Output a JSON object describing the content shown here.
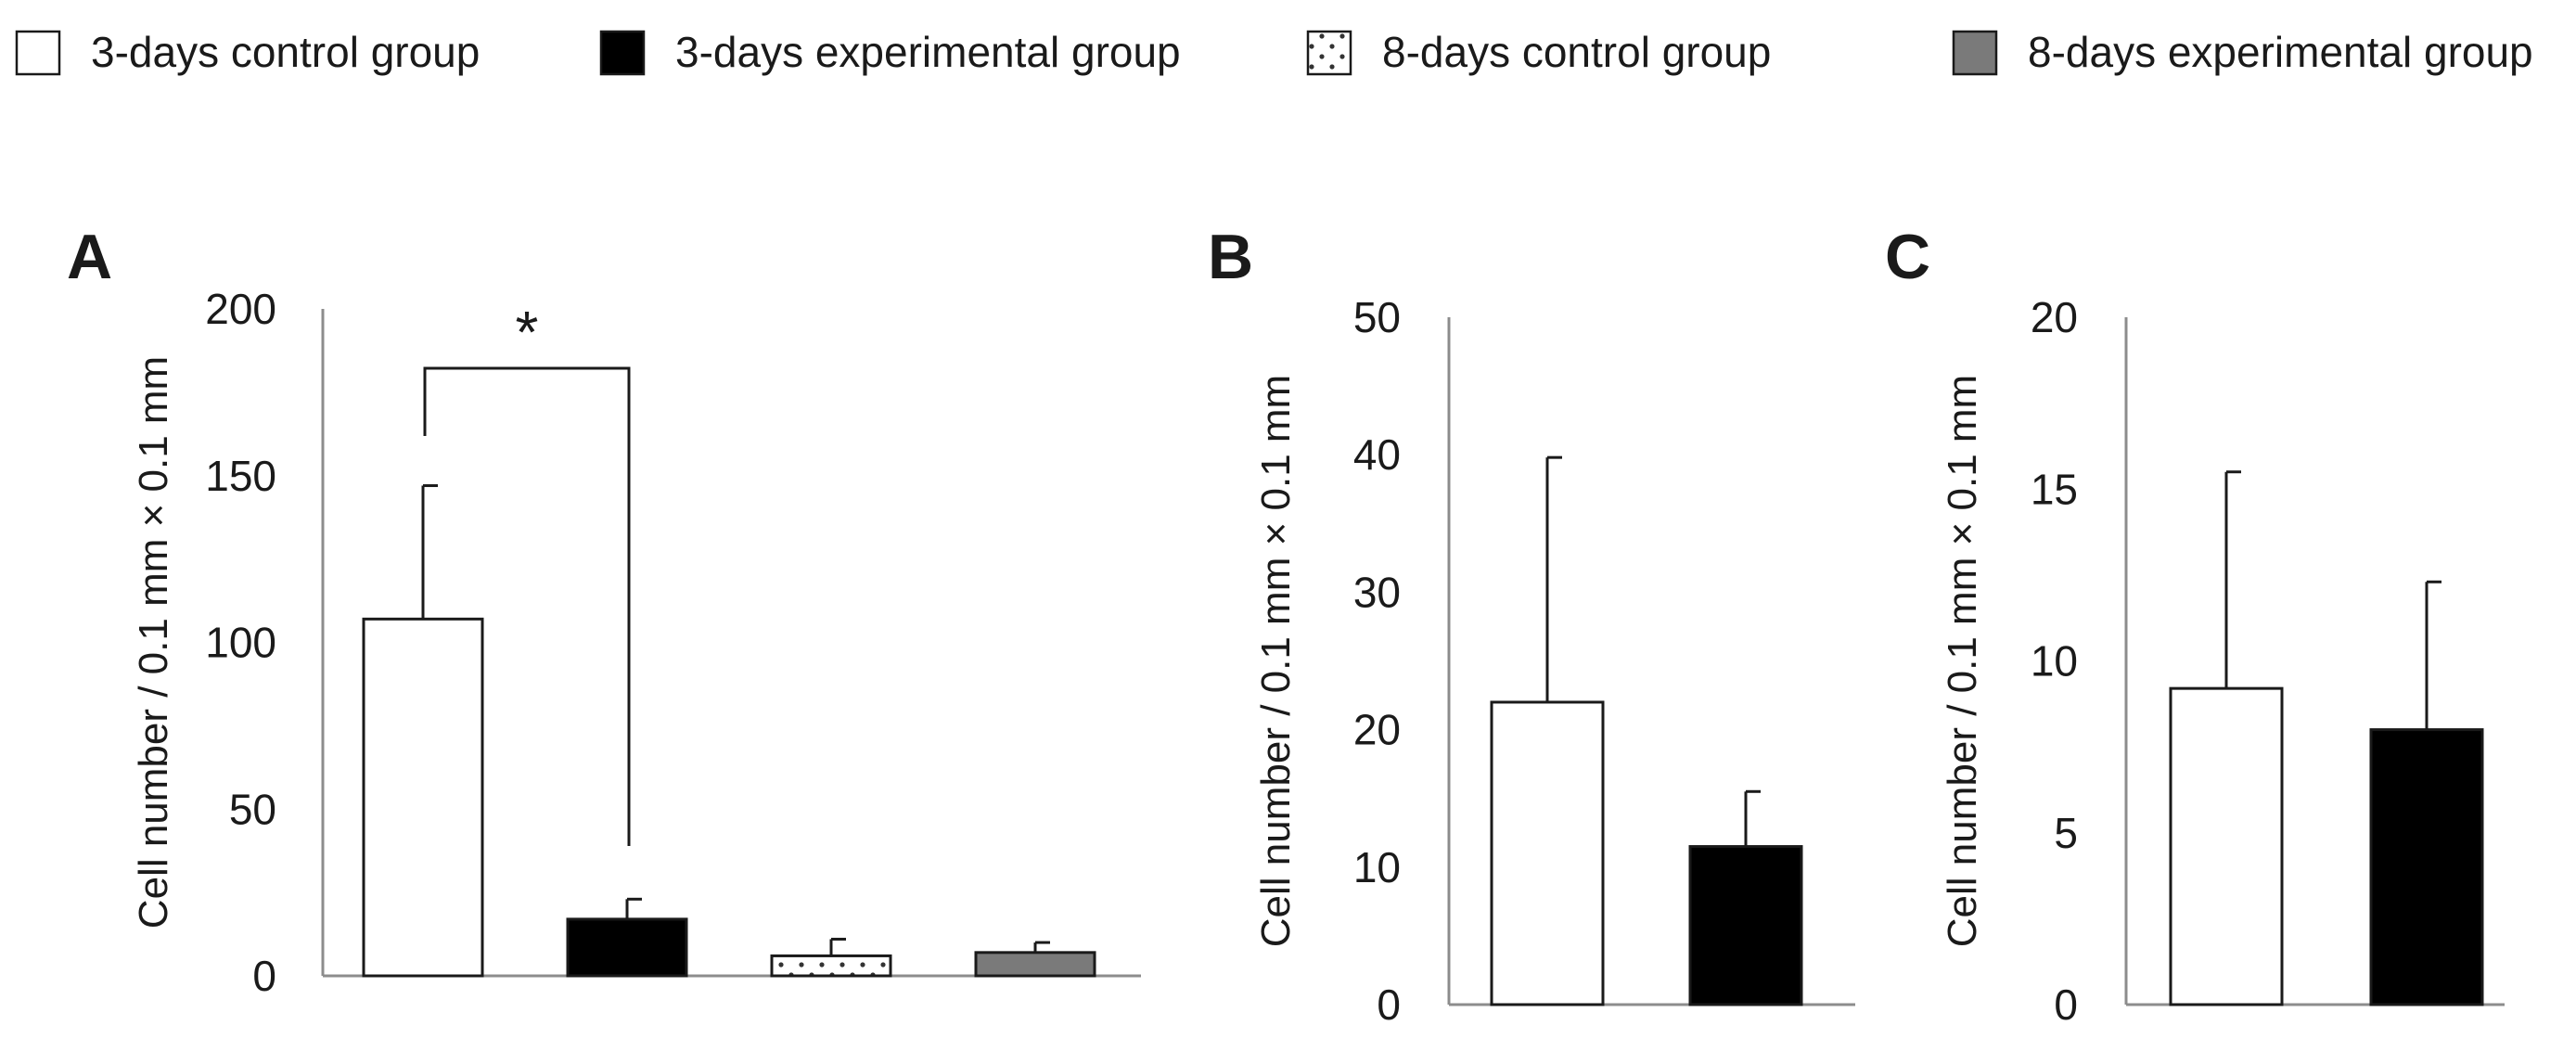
{
  "legend": [
    {
      "label": "3-days control group",
      "pattern": "white"
    },
    {
      "label": "3-days experimental group",
      "pattern": "black"
    },
    {
      "label": "8-days control group",
      "pattern": "dotted"
    },
    {
      "label": "8-days experimental group",
      "pattern": "gray"
    }
  ],
  "colors": {
    "white": "#ffffff",
    "black": "#000000",
    "gray": "#7a7a7a",
    "dots": "#333333",
    "axis": "#8c8c8c",
    "stroke": "#1a1a1a"
  },
  "chart_data": [
    {
      "panel": "A",
      "type": "bar",
      "title": "",
      "xlabel": "",
      "ylabel": "Cell number / 0.1 mm × 0.1 mm",
      "ylim": [
        0,
        200
      ],
      "yticks": [
        "0",
        "50",
        "100",
        "150",
        "200"
      ],
      "categories": [
        "3-days control group",
        "3-days experimental group",
        "8-days control group",
        "8-days experimental group"
      ],
      "values": [
        107,
        17,
        6,
        7
      ],
      "errors": [
        40,
        6,
        5,
        3
      ],
      "significance": {
        "pair": [
          0,
          1
        ],
        "label": "*"
      }
    },
    {
      "panel": "B",
      "type": "bar",
      "title": "",
      "xlabel": "",
      "ylabel": "Cell number / 0.1 mm × 0.1 mm",
      "ylim": [
        0,
        50
      ],
      "yticks": [
        "0",
        "10",
        "20",
        "30",
        "40",
        "50"
      ],
      "categories": [
        "3-days control group",
        "3-days experimental group"
      ],
      "values": [
        22,
        11.5
      ],
      "errors": [
        17.8,
        4
      ]
    },
    {
      "panel": "C",
      "type": "bar",
      "title": "",
      "xlabel": "",
      "ylabel": "Cell number / 0.1 mm × 0.1 mm",
      "ylim": [
        0,
        20
      ],
      "yticks": [
        "0",
        "5",
        "10",
        "15",
        "20"
      ],
      "categories": [
        "3-days control group",
        "3-days experimental group"
      ],
      "values": [
        9.2,
        8
      ],
      "errors": [
        6.3,
        4.3
      ]
    }
  ]
}
